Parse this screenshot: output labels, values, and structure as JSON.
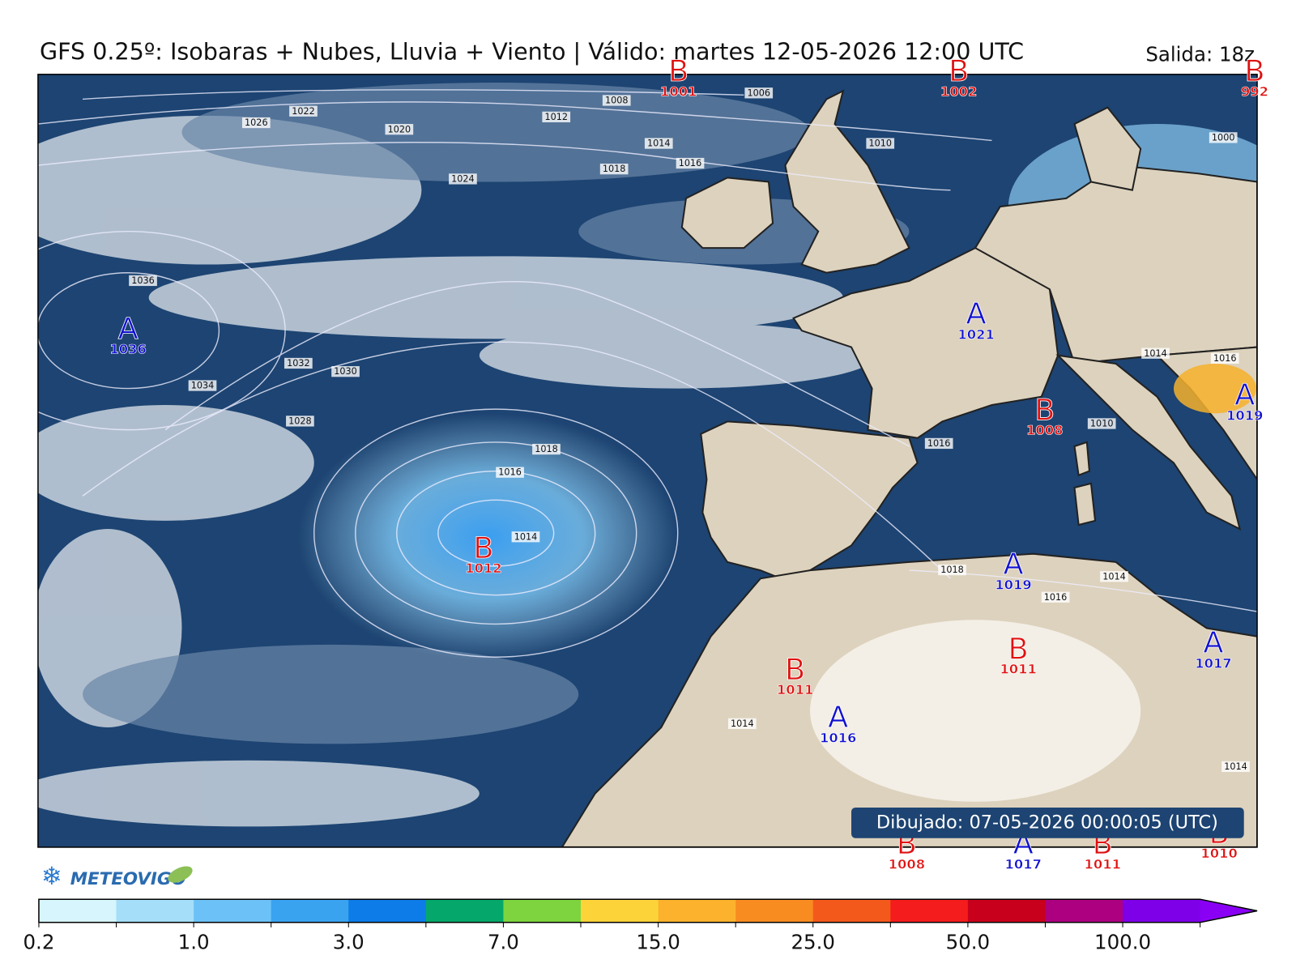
{
  "header": {
    "title": "GFS 0.25º: Isobaras + Nubes, Lluvia + Viento | Válido: martes 12-05-2026 12:00 UTC",
    "run": "Salida: 18z"
  },
  "pressure_centers": [
    {
      "type": "A",
      "value": 1036
    },
    {
      "type": "B",
      "value": 1012
    },
    {
      "type": "A",
      "value": 1021
    },
    {
      "type": "B",
      "value": 1008
    },
    {
      "type": "A",
      "value": 1019
    },
    {
      "type": "A",
      "value": 1019
    },
    {
      "type": "B",
      "value": 1011
    },
    {
      "type": "A",
      "value": 1016
    },
    {
      "type": "B",
      "value": 1011
    },
    {
      "type": "A",
      "value": 1017
    },
    {
      "type": "B",
      "value": 1001
    },
    {
      "type": "B",
      "value": 1002
    },
    {
      "type": "B",
      "value": 992
    },
    {
      "type": "B",
      "value": 1008
    },
    {
      "type": "A",
      "value": 1017
    },
    {
      "type": "B",
      "value": 1011
    },
    {
      "type": "B",
      "value": 1010
    }
  ],
  "isobar_labels": [
    1022,
    1020,
    1024,
    1026,
    1008,
    1012,
    1006,
    1014,
    1016,
    1018,
    1010,
    1036,
    1034,
    1032,
    1030,
    1028,
    1018,
    1016,
    1014,
    1016,
    1014,
    1018,
    1016,
    1014,
    1014,
    1014,
    1000,
    1016,
    1010
  ],
  "colorbar": {
    "colors": [
      "#d6f5fc",
      "#a5def9",
      "#6cc2f6",
      "#3aa3f0",
      "#0d7ce8",
      "#05a86a",
      "#7ed43e",
      "#fdd33a",
      "#fcb22d",
      "#f98c21",
      "#f4591c",
      "#f41c1c",
      "#c9001b",
      "#ad0080",
      "#7e00e8",
      "#8a00f5"
    ],
    "ticks": [
      "0.2",
      "1.0",
      "3.0",
      "7.0",
      "15.0",
      "25.0",
      "50.0",
      "100.0"
    ]
  },
  "footer": {
    "drawn": "Dibujado: 07-05-2026 00:00:05 (UTC)",
    "logo": "METEOVIGO"
  }
}
